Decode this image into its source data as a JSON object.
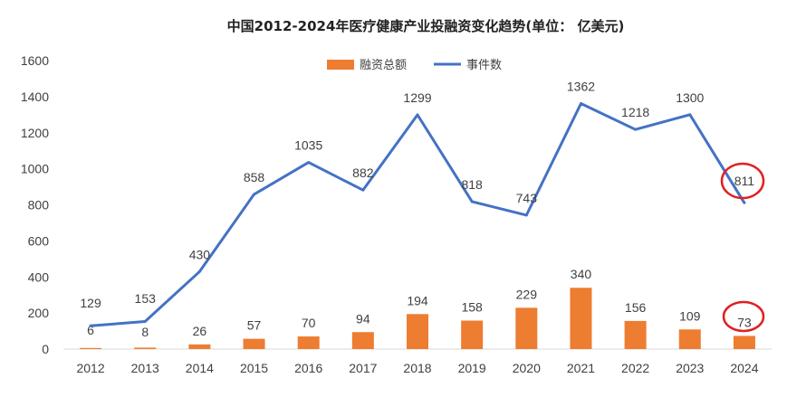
{
  "chart_data": {
    "type": "bar+line",
    "title": "中国2012-2024年医疗健康产业投融资变化趋势(单位： 亿美元)",
    "categories": [
      "2012",
      "2013",
      "2014",
      "2015",
      "2016",
      "2017",
      "2018",
      "2019",
      "2020",
      "2021",
      "2022",
      "2023",
      "2024"
    ],
    "series": [
      {
        "name": "融资总额",
        "type": "bar",
        "color": "#ED7D31",
        "values": [
          6,
          8,
          26,
          57,
          70,
          94,
          194,
          158,
          229,
          340,
          156,
          109,
          73
        ]
      },
      {
        "name": "事件数",
        "type": "line",
        "color": "#4472C4",
        "values": [
          129,
          153,
          430,
          858,
          1035,
          882,
          1299,
          818,
          743,
          1362,
          1218,
          1300,
          811
        ]
      }
    ],
    "ylim": [
      0,
      1600
    ],
    "yticks": [
      "0",
      "200",
      "400",
      "600",
      "800",
      "1000",
      "1200",
      "1400",
      "1600"
    ],
    "legend_position": "top-center",
    "grid": false,
    "highlight_color": "#E02020",
    "highlighted": [
      "2024 事件数 811",
      "2024 融资总额 73"
    ]
  }
}
